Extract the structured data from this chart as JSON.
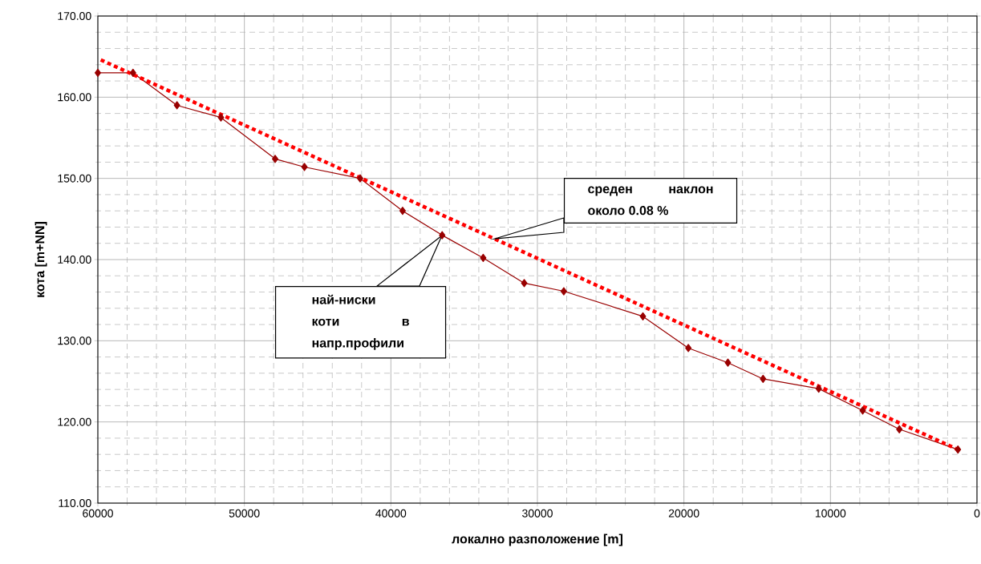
{
  "chart_data": {
    "type": "line",
    "xlabel": "локално разположение [m]",
    "ylabel": "кота [m+NN]",
    "xlim": [
      60000,
      0
    ],
    "xticks": [
      60000,
      50000,
      40000,
      30000,
      20000,
      10000,
      0
    ],
    "ylim": [
      110,
      170
    ],
    "yticks": [
      {
        "value": 110,
        "label": "110.00"
      },
      {
        "value": 120,
        "label": "120.00"
      },
      {
        "value": 130,
        "label": "130.00"
      },
      {
        "value": 140,
        "label": "140.00"
      },
      {
        "value": 150,
        "label": "150.00"
      },
      {
        "value": 160,
        "label": "160.00"
      },
      {
        "value": 170,
        "label": "170.00"
      }
    ],
    "grid": true,
    "series": [
      {
        "color": "#990000",
        "marker": "diamond",
        "line_style": "solid",
        "x": [
          60000,
          57600,
          54600,
          51600,
          47900,
          45900,
          42100,
          39200,
          36500,
          33700,
          30900,
          28200,
          22800,
          19700,
          17000,
          14600,
          10800,
          7800,
          5300,
          1300
        ],
        "values": [
          163.0,
          163.0,
          159.0,
          157.5,
          152.4,
          151.4,
          150.0,
          146.0,
          143.0,
          140.2,
          137.1,
          136.1,
          133.0,
          129.1,
          127.3,
          125.3,
          124.1,
          121.4,
          119.1,
          116.6
        ]
      },
      {
        "type": "line",
        "color": "#ff0000",
        "marker": "none",
        "line_style": "dotted",
        "x": [
          59800,
          1300
        ],
        "values": [
          164.6,
          116.6
        ]
      }
    ],
    "annotations": [
      "среден наклон около 0.08 %",
      "най-ниски коти в напр.профили"
    ]
  }
}
